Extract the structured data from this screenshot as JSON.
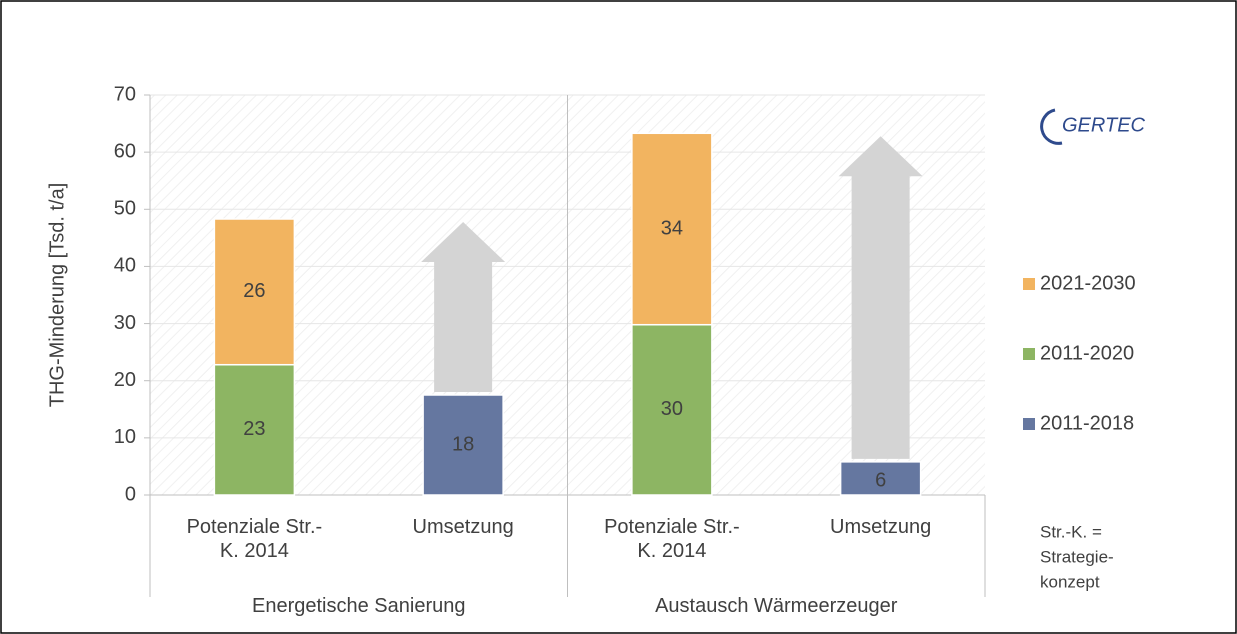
{
  "chart_data": {
    "type": "bar",
    "stacked": true,
    "ylabel": "THG-Minderung [Tsd. t/a]",
    "categories": [
      "Potenziale Str.-K. 2014",
      "Umsetzung",
      "Potenziale Str.-K. 2014",
      "Umsetzung"
    ],
    "groups": [
      "Energetische Sanierung",
      "Austausch Wärmeerzeuger"
    ],
    "series": [
      {
        "name": "2011-2018",
        "color": "#6577a0",
        "values": [
          null,
          17.5,
          null,
          5.8
        ],
        "value_labels": [
          null,
          "18",
          null,
          "6"
        ]
      },
      {
        "name": "2011-2020",
        "color": "#8db563",
        "values": [
          22.8,
          null,
          29.8,
          null
        ],
        "value_labels": [
          "23",
          null,
          "30",
          null
        ]
      },
      {
        "name": "2021-2030",
        "color": "#f2b460",
        "values": [
          25.5,
          null,
          33.5,
          null
        ],
        "value_labels": [
          "26",
          null,
          "34",
          null
        ]
      }
    ],
    "ylim": [
      0,
      70
    ],
    "yticks": [
      0,
      10,
      20,
      30,
      40,
      50,
      60,
      70
    ],
    "grid": true,
    "legend": "right",
    "logo": "GERTEC",
    "note": [
      "Str.-K. =",
      "Strategie-",
      "konzept"
    ]
  }
}
